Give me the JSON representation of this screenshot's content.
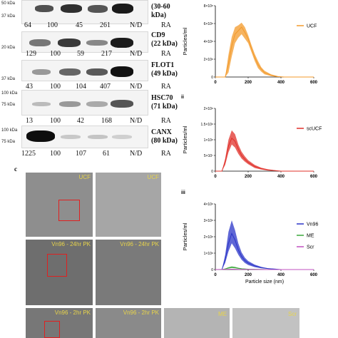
{
  "figure": {
    "panel_c_label": "c",
    "blot_rows": [
      {
        "protein_label": "(30-60\nkDa)",
        "protein_line1": "",
        "protein_line2": "(30-60",
        "protein_line3": "kDa)",
        "markers": [
          "50 kDa",
          "37 kDa"
        ],
        "ra_values": [
          "64",
          "100",
          "45",
          "261",
          "N/D"
        ],
        "ra_label": "RA"
      },
      {
        "protein_line1": "CD9",
        "protein_line2": "(22 kDa)",
        "markers": [
          "20 kDa"
        ],
        "ra_values": [
          "129",
          "100",
          "59",
          "217",
          "N/D"
        ],
        "ra_label": "RA"
      },
      {
        "protein_line1": "FLOT1",
        "protein_line2": "(49 kDa)",
        "markers": [
          "37 kDa"
        ],
        "ra_values": [
          "43",
          "100",
          "104",
          "407",
          "N/D"
        ],
        "ra_label": "RA"
      },
      {
        "protein_line1": "HSC70",
        "protein_line2": "(71 kDa)",
        "markers": [
          "100 kDa",
          "75 kDa"
        ],
        "ra_values": [
          "13",
          "100",
          "42",
          "168",
          "N/D"
        ],
        "ra_label": "RA"
      },
      {
        "protein_line1": "CANX",
        "protein_line2": "(80 kDa)",
        "markers": [
          "100 kDa",
          "75 kDa"
        ],
        "ra_values": [
          "1225",
          "100",
          "107",
          "61",
          "N/D"
        ],
        "ra_label": "RA"
      }
    ],
    "em_labels": {
      "ucf_1": "UCF",
      "ucf_2": "UCF",
      "vn96_1": "Vn96 - 24hr PK",
      "vn96_2": "Vn96 - 24hr PK",
      "vn96_3": "Vn96 - 2hr PK",
      "vn96_4": "Vn96 - 2hr PK",
      "me": "ME",
      "scr": "Scr"
    }
  },
  "chart_data": [
    {
      "type": "area",
      "panel_label": "",
      "ylabel": "Particles/ml",
      "xlabel": "",
      "x_ticks": [
        "0",
        "200",
        "400",
        "600"
      ],
      "y_ticks": [
        "0",
        "2×10⁸",
        "4×10⁸",
        "6×10⁸",
        "8×10⁸"
      ],
      "xlim": [
        0,
        600
      ],
      "ylim": [
        0,
        800000000
      ],
      "legend_position": "right",
      "series": [
        {
          "name": "UCF",
          "color": "#f39a2a",
          "x": [
            0,
            60,
            80,
            100,
            120,
            140,
            160,
            180,
            200,
            220,
            240,
            260,
            280,
            300,
            340,
            380,
            420,
            500,
            600
          ],
          "mean": [
            0,
            0,
            150000000,
            350000000,
            480000000,
            520000000,
            560000000,
            500000000,
            430000000,
            320000000,
            220000000,
            140000000,
            90000000,
            50000000,
            20000000,
            5000000,
            0,
            0,
            0
          ],
          "upper": [
            0,
            0,
            250000000,
            450000000,
            560000000,
            580000000,
            610000000,
            560000000,
            470000000,
            360000000,
            260000000,
            180000000,
            110000000,
            70000000,
            30000000,
            10000000,
            0,
            0,
            0
          ],
          "lower": [
            0,
            0,
            50000000,
            230000000,
            380000000,
            440000000,
            480000000,
            430000000,
            380000000,
            280000000,
            180000000,
            100000000,
            60000000,
            30000000,
            10000000,
            0,
            0,
            0,
            0
          ]
        }
      ]
    },
    {
      "type": "area",
      "panel_label": "ii",
      "ylabel": "Particles/ml",
      "xlabel": "",
      "x_ticks": [
        "0",
        "200",
        "400",
        "600"
      ],
      "y_ticks": [
        "0",
        "5×10⁷",
        "1×10⁸",
        "1.5×10⁸",
        "2×10⁸"
      ],
      "xlim": [
        0,
        600
      ],
      "ylim": [
        0,
        200000000
      ],
      "legend_position": "right",
      "series": [
        {
          "name": "scUCF",
          "color": "#e0302a",
          "x": [
            0,
            40,
            60,
            80,
            100,
            120,
            140,
            160,
            180,
            200,
            240,
            280,
            320,
            360,
            400,
            600
          ],
          "mean": [
            0,
            0,
            30000000,
            80000000,
            105000000,
            95000000,
            70000000,
            50000000,
            38000000,
            28000000,
            15000000,
            8000000,
            4000000,
            2000000,
            0,
            0
          ],
          "upper": [
            0,
            0,
            40000000,
            100000000,
            130000000,
            118000000,
            85000000,
            62000000,
            47000000,
            35000000,
            20000000,
            11000000,
            6000000,
            3000000,
            0,
            0
          ],
          "lower": [
            0,
            0,
            20000000,
            60000000,
            85000000,
            75000000,
            55000000,
            40000000,
            30000000,
            22000000,
            10000000,
            5000000,
            2000000,
            1000000,
            0,
            0
          ]
        }
      ]
    },
    {
      "type": "area",
      "panel_label": "iii",
      "ylabel": "Particles/ml",
      "xlabel": "Particle size (nm)",
      "x_ticks": [
        "0",
        "200",
        "400",
        "600"
      ],
      "y_ticks": [
        "0",
        "1×10⁸",
        "2×10⁸",
        "3×10⁸",
        "4×10⁸"
      ],
      "xlim": [
        0,
        600
      ],
      "ylim": [
        0,
        400000000
      ],
      "legend_position": "right",
      "series": [
        {
          "name": "Vn96",
          "color": "#2a34c8",
          "x": [
            0,
            40,
            60,
            80,
            100,
            120,
            140,
            160,
            180,
            200,
            240,
            280,
            320,
            360,
            400,
            600
          ],
          "mean": [
            0,
            0,
            60000000,
            160000000,
            220000000,
            180000000,
            120000000,
            80000000,
            55000000,
            40000000,
            22000000,
            12000000,
            6000000,
            3000000,
            0,
            0
          ],
          "upper": [
            0,
            0,
            90000000,
            230000000,
            300000000,
            240000000,
            160000000,
            105000000,
            72000000,
            52000000,
            30000000,
            16000000,
            8000000,
            4000000,
            0,
            0
          ],
          "lower": [
            0,
            0,
            40000000,
            110000000,
            160000000,
            130000000,
            90000000,
            60000000,
            40000000,
            28000000,
            15000000,
            8000000,
            4000000,
            2000000,
            0,
            0
          ]
        },
        {
          "name": "ME",
          "color": "#3aa83a",
          "x": [
            0,
            40,
            60,
            80,
            100,
            120,
            140,
            160,
            200,
            300,
            400,
            600
          ],
          "mean": [
            0,
            0,
            4000000,
            10000000,
            14000000,
            12000000,
            8000000,
            5000000,
            2000000,
            500000,
            0,
            0
          ],
          "upper": [
            0,
            0,
            6000000,
            14000000,
            19000000,
            16000000,
            11000000,
            7000000,
            3000000,
            1000000,
            0,
            0
          ],
          "lower": [
            0,
            0,
            2000000,
            6000000,
            9000000,
            8000000,
            5000000,
            3000000,
            1000000,
            0,
            0,
            0
          ]
        },
        {
          "name": "Scr",
          "color": "#c050c0",
          "x": [
            0,
            60,
            100,
            140,
            200,
            300,
            400,
            600
          ],
          "mean": [
            0,
            1000000,
            2000000,
            1500000,
            800000,
            200000,
            0,
            0
          ],
          "upper": [
            0,
            1500000,
            3000000,
            2200000,
            1200000,
            400000,
            0,
            0
          ],
          "lower": [
            0,
            500000,
            1000000,
            800000,
            400000,
            0,
            0,
            0
          ]
        }
      ]
    }
  ]
}
